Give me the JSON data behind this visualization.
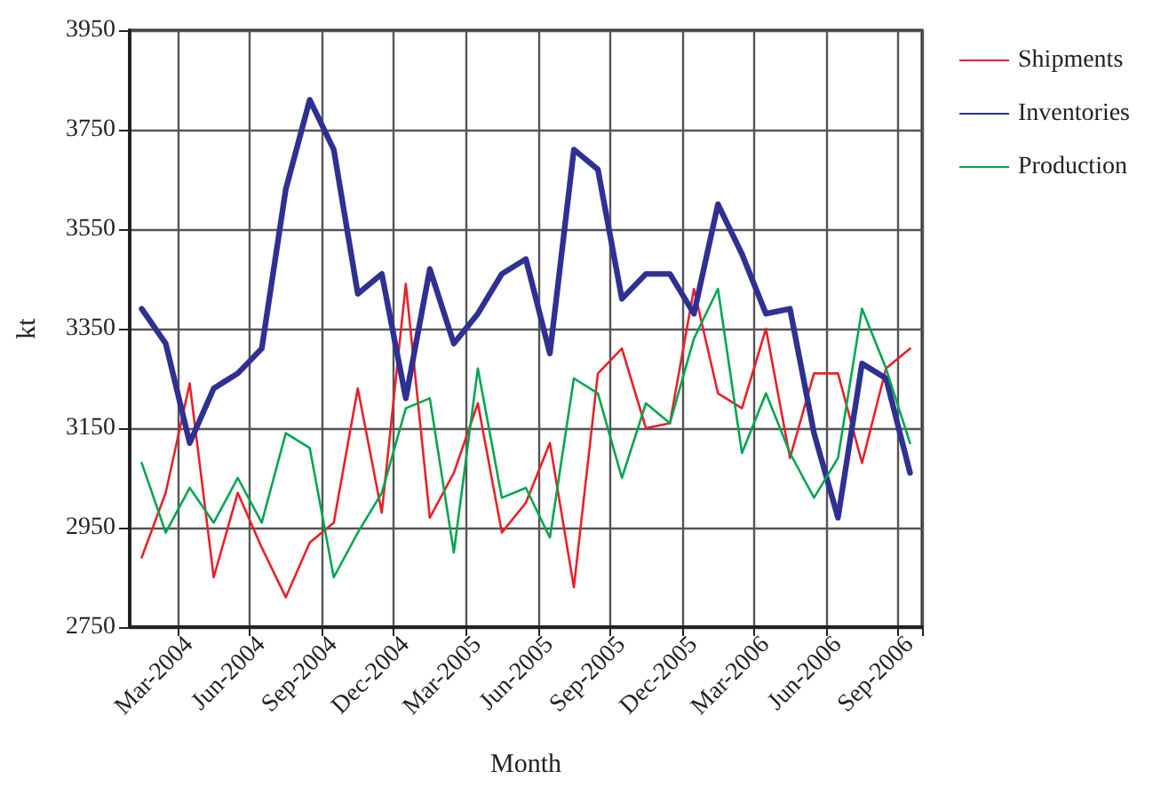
{
  "chart_data": {
    "type": "line",
    "xlabel": "Month",
    "ylabel": "kt",
    "categories": [
      null,
      null,
      "Mar-2004",
      null,
      null,
      "Jun-2004",
      null,
      null,
      "Sep-2004",
      null,
      null,
      "Dec-2004",
      null,
      null,
      "Mar-2005",
      null,
      null,
      "Jun-2005",
      null,
      null,
      "Sep-2005",
      null,
      null,
      "Dec-2005",
      null,
      null,
      "Mar-2006",
      null,
      null,
      "Jun-2006",
      null,
      null,
      "Sep-2006"
    ],
    "series": [
      {
        "name": "Shipments",
        "color": "#e8202a",
        "values": [
          2890,
          3020,
          3240,
          2850,
          3020,
          2910,
          2810,
          2920,
          2960,
          3230,
          2980,
          3440,
          2970,
          3060,
          3200,
          2940,
          3000,
          3120,
          2830,
          3260,
          3310,
          3150,
          3160,
          3430,
          3220,
          3190,
          3350,
          3090,
          3260,
          3260,
          3080,
          3270,
          3310
        ]
      },
      {
        "name": "Inventories",
        "color": "#2e3192",
        "values": [
          3390,
          3320,
          3120,
          3230,
          3260,
          3310,
          3630,
          3810,
          3710,
          3420,
          3460,
          3210,
          3470,
          3320,
          3380,
          3460,
          3490,
          3300,
          3710,
          3670,
          3410,
          3460,
          3460,
          3380,
          3600,
          3500,
          3380,
          3390,
          3140,
          2970,
          3280,
          3250,
          3060
        ]
      },
      {
        "name": "Production",
        "color": "#00a650",
        "values": [
          3080,
          2940,
          3030,
          2960,
          3050,
          2960,
          3140,
          3110,
          2850,
          2940,
          3020,
          3190,
          3210,
          2900,
          3270,
          3010,
          3030,
          2930,
          3250,
          3220,
          3050,
          3200,
          3160,
          3330,
          3430,
          3100,
          3220,
          3100,
          3010,
          3090,
          3390,
          3270,
          3120
        ]
      }
    ],
    "ylim": [
      2750,
      3950
    ],
    "yticks": [
      2750,
      2950,
      3150,
      3350,
      3550,
      3750,
      3950
    ],
    "grid": true,
    "legend": "top right",
    "marker": "none",
    "line_style": "solid"
  }
}
